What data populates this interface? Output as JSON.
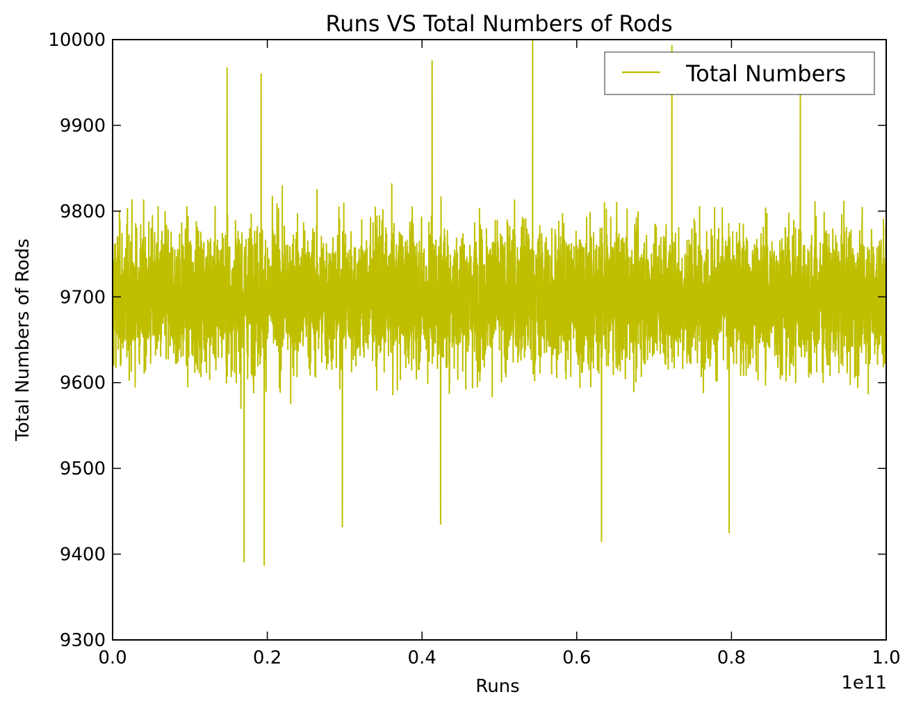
{
  "chart_data": {
    "type": "line",
    "title": "Runs VS Total Numbers of Rods",
    "xlabel": "Runs",
    "ylabel": "Total Numbers of Rods",
    "x_offset_label": "1e11",
    "xlim": [
      0.0,
      1.0
    ],
    "ylim": [
      9300,
      10000
    ],
    "x_scale_factor": "1e11",
    "x_ticks": [
      0.0,
      0.2,
      0.4,
      0.6,
      0.8,
      1.0
    ],
    "x_tick_labels": [
      "0.0",
      "0.2",
      "0.4",
      "0.6",
      "0.8",
      "1.0"
    ],
    "y_ticks": [
      9300,
      9400,
      9500,
      9600,
      9700,
      9800,
      9900,
      10000
    ],
    "y_tick_labels": [
      "9300",
      "9400",
      "9500",
      "9600",
      "9700",
      "9800",
      "9900",
      "10000"
    ],
    "grid": false,
    "legend_position": "top-right",
    "series": [
      {
        "name": "Total Numbers",
        "color": "#bfbf00",
        "description_values": {
          "mean": 9700,
          "typical_band": [
            9540,
            9860
          ],
          "maximum": 10000,
          "minimum": 9387
        },
        "notable_peaks": [
          {
            "x": 0.148,
            "y": 9967
          },
          {
            "x": 0.192,
            "y": 9960
          },
          {
            "x": 0.413,
            "y": 9975
          },
          {
            "x": 0.543,
            "y": 10000
          },
          {
            "x": 0.723,
            "y": 9993
          },
          {
            "x": 0.889,
            "y": 9957
          }
        ],
        "notable_troughs": [
          {
            "x": 0.17,
            "y": 9391
          },
          {
            "x": 0.196,
            "y": 9387
          },
          {
            "x": 0.632,
            "y": 9415
          },
          {
            "x": 0.797,
            "y": 9425
          },
          {
            "x": 0.424,
            "y": 9435
          },
          {
            "x": 0.297,
            "y": 9432
          }
        ]
      }
    ]
  }
}
